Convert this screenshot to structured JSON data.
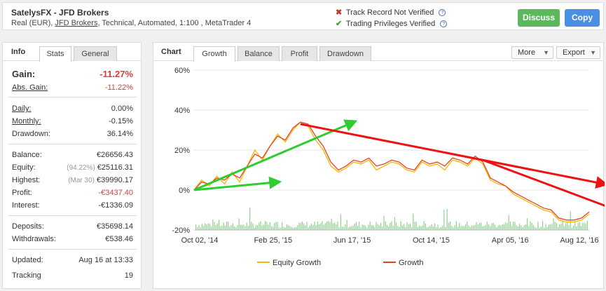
{
  "header": {
    "title": "SatelysFX - JFD Brokers",
    "info_prefix": "Real (EUR), ",
    "broker": "JFD Brokers",
    "info_suffix": ", Technical, Automated, 1:100 , MetaTrader 4",
    "track_record": "Track Record Not Verified",
    "trading_privileges": "Trading Privileges Verified",
    "discuss": "Discuss",
    "copy": "Copy"
  },
  "left": {
    "title": "Info",
    "tabs": [
      "Stats",
      "General"
    ],
    "gain_label": "Gain:",
    "gain_value": "-11.27%",
    "abs_gain_label": "Abs. Gain:",
    "abs_gain_value": "-11.22%",
    "daily_label": "Daily:",
    "daily_value": "0.00%",
    "monthly_label": "Monthly:",
    "monthly_value": "-0.15%",
    "drawdown_label": "Drawdown:",
    "drawdown_value": "36.14%",
    "balance_label": "Balance:",
    "balance_value": "€26656.43",
    "equity_label": "Equity:",
    "equity_sub": "(94.22%)",
    "equity_value": "€25116.31",
    "highest_label": "Highest:",
    "highest_sub": "(Mar 30)",
    "highest_value": "€39990.17",
    "profit_label": "Profit:",
    "profit_value": "-€3437.40",
    "interest_label": "Interest:",
    "interest_value": "-€1336.09",
    "deposits_label": "Deposits:",
    "deposits_value": "€35698.14",
    "withdrawals_label": "Withdrawals:",
    "withdrawals_value": "€538.46",
    "updated_label": "Updated:",
    "updated_value": "Aug 16 at 13:33",
    "tracking_label": "Tracking",
    "tracking_value": "19"
  },
  "chart_panel": {
    "title": "Chart",
    "tabs": [
      "Growth",
      "Balance",
      "Profit",
      "Drawdown"
    ],
    "more": "More",
    "export": "Export"
  },
  "chart_data": {
    "type": "line",
    "x_ticks": [
      "Oct 02, '14",
      "Feb 25, '15",
      "Jun 17, '15",
      "Oct 14, '15",
      "Apr 05, '16",
      "Aug 12, '16"
    ],
    "y_ticks": [
      "60%",
      "40%",
      "20%",
      "0%",
      "-20%"
    ],
    "ylim": [
      -20,
      60
    ],
    "grid": "horizontal",
    "legend": "bottom",
    "series": [
      {
        "name": "Equity Growth",
        "color": "#f5b800",
        "values": [
          0,
          5,
          2,
          7,
          3,
          9,
          4,
          12,
          20,
          15,
          22,
          28,
          24,
          30,
          34,
          32,
          25,
          20,
          12,
          9,
          11,
          14,
          13,
          15,
          10,
          12,
          14,
          13,
          10,
          9,
          14,
          12,
          13,
          10,
          15,
          14,
          12,
          16,
          13,
          5,
          3,
          2,
          -2,
          -4,
          -6,
          -8,
          -10,
          -11,
          -15,
          -16,
          -16,
          -15,
          -12
        ]
      },
      {
        "name": "Growth",
        "color": "#e0442a",
        "values": [
          0,
          4,
          3,
          6,
          5,
          8,
          6,
          12,
          18,
          16,
          22,
          27,
          25,
          31,
          34,
          33,
          27,
          22,
          14,
          10,
          12,
          15,
          14,
          16,
          12,
          13,
          15,
          14,
          11,
          10,
          15,
          13,
          14,
          12,
          16,
          15,
          13,
          17,
          14,
          6,
          4,
          2,
          -1,
          -3,
          -5,
          -7,
          -9,
          -10,
          -14,
          -15,
          -15,
          -14,
          -11
        ]
      }
    ],
    "volume_color": "#8fd08f",
    "annotation_arrows": [
      {
        "color": "#2ecc2e",
        "from": [
          0,
          0
        ],
        "to": [
          11,
          4
        ]
      },
      {
        "color": "#2ecc2e",
        "from": [
          0,
          0
        ],
        "to": [
          21,
          34
        ]
      },
      {
        "color": "#ee1111",
        "from": [
          14,
          33
        ],
        "to": [
          54,
          3
        ]
      },
      {
        "color": "#ee1111",
        "from": [
          38,
          15
        ],
        "to": [
          57,
          -12
        ]
      }
    ]
  }
}
